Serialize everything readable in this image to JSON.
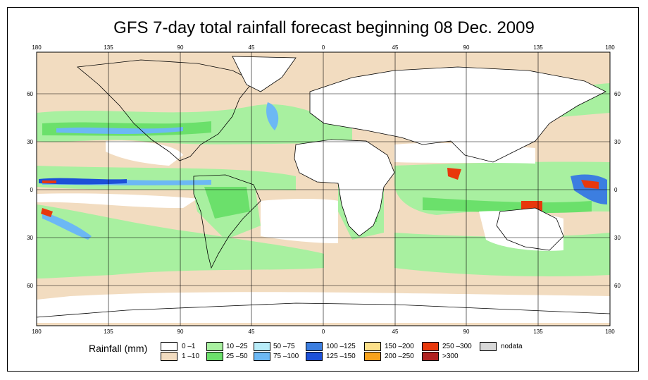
{
  "title": "GFS 7-day total rainfall forecast beginning 08 Dec. 2009",
  "axes": {
    "lon_ticks": [
      "180",
      "135",
      "90",
      "45",
      "0",
      "45",
      "90",
      "135",
      "180"
    ],
    "lat_ticks_left": [
      "60",
      "30",
      "0",
      "30",
      "60"
    ],
    "lat_ticks_right": [
      "60",
      "30",
      "0",
      "30",
      "60"
    ]
  },
  "legend": {
    "title": "Rainfall (mm)",
    "items": [
      {
        "label": "0 –1",
        "color": "#ffffff"
      },
      {
        "label": "1 –10",
        "color": "#f2dcc0"
      },
      {
        "label": "10 –25",
        "color": "#a8f0a0"
      },
      {
        "label": "25 –50",
        "color": "#6be06b"
      },
      {
        "label": "50 –75",
        "color": "#b8ecf8"
      },
      {
        "label": "75 –100",
        "color": "#6cb8f4"
      },
      {
        "label": "100 –125",
        "color": "#3c7ee0"
      },
      {
        "label": "125 –150",
        "color": "#1c50d8"
      },
      {
        "label": "150 –200",
        "color": "#fde08a"
      },
      {
        "label": "200 –250",
        "color": "#f7a21c"
      },
      {
        "label": "250 –300",
        "color": "#e8380c"
      },
      {
        "label": ">300",
        "color": "#b02020"
      },
      {
        "label": "nodata",
        "color": "#d8d8d8"
      }
    ]
  }
}
